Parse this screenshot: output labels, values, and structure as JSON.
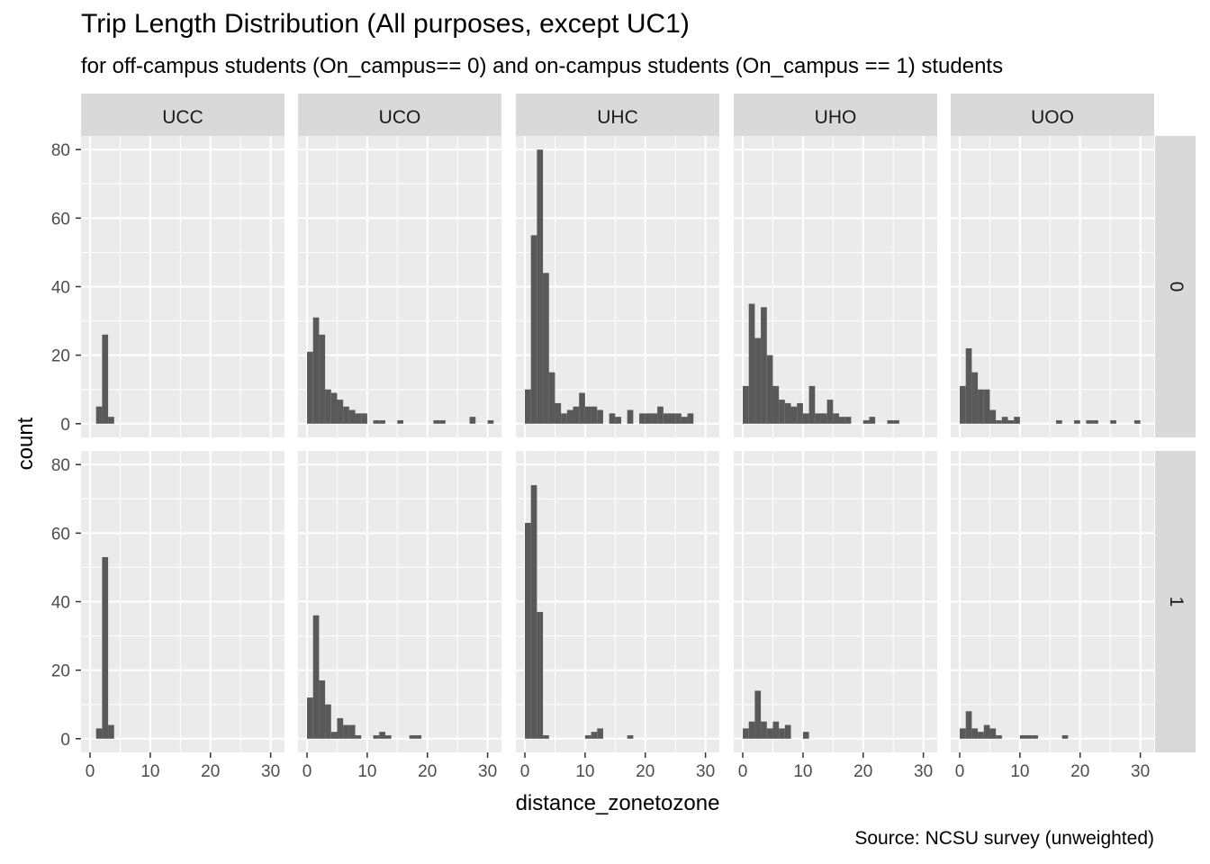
{
  "chart_data": {
    "type": "bar",
    "title": "Trip Length Distribution (All purposes, except UC1)",
    "subtitle": "for off-campus students (On_campus== 0) and on-campus students (On_campus == 1) students",
    "caption": "Source: NCSU survey (unweighted)",
    "xlabel": "distance_zonetozone",
    "ylabel": "count",
    "xlim": [
      -1.5,
      32.3
    ],
    "ylim": [
      -4,
      84
    ],
    "xticks": [
      0,
      10,
      20,
      30
    ],
    "yticks": [
      0,
      20,
      40,
      60,
      80
    ],
    "bin_width": 1,
    "grid": true,
    "bar_color": "#595959",
    "panel_background": "#EBEBEB",
    "strip_background": "#D9D9D9",
    "columns": [
      "UCC",
      "UCO",
      "UHC",
      "UHO",
      "UOO"
    ],
    "rows": [
      "0",
      "1"
    ],
    "panels": [
      {
        "col": "UCC",
        "row": "0",
        "bins": [
          [
            1,
            5
          ],
          [
            2,
            26
          ],
          [
            3,
            2
          ]
        ]
      },
      {
        "col": "UCO",
        "row": "0",
        "bins": [
          [
            0,
            21
          ],
          [
            1,
            31
          ],
          [
            2,
            26
          ],
          [
            3,
            10
          ],
          [
            4,
            9
          ],
          [
            5,
            7
          ],
          [
            6,
            5
          ],
          [
            7,
            4
          ],
          [
            8,
            3
          ],
          [
            9,
            3
          ],
          [
            11,
            1
          ],
          [
            12,
            1
          ],
          [
            15,
            1
          ],
          [
            21,
            1
          ],
          [
            22,
            1
          ],
          [
            27,
            2
          ],
          [
            30,
            1
          ]
        ]
      },
      {
        "col": "UHC",
        "row": "0",
        "bins": [
          [
            0,
            10
          ],
          [
            1,
            55
          ],
          [
            2,
            80
          ],
          [
            3,
            44
          ],
          [
            4,
            15
          ],
          [
            5,
            6
          ],
          [
            6,
            3
          ],
          [
            7,
            4
          ],
          [
            8,
            5
          ],
          [
            9,
            9
          ],
          [
            10,
            5
          ],
          [
            11,
            5
          ],
          [
            12,
            4
          ],
          [
            14,
            3
          ],
          [
            15,
            2
          ],
          [
            17,
            4
          ],
          [
            19,
            3
          ],
          [
            20,
            3
          ],
          [
            21,
            3
          ],
          [
            22,
            5
          ],
          [
            23,
            3
          ],
          [
            24,
            3
          ],
          [
            25,
            3
          ],
          [
            26,
            2
          ],
          [
            27,
            3
          ]
        ]
      },
      {
        "col": "UHO",
        "row": "0",
        "bins": [
          [
            0,
            11
          ],
          [
            1,
            35
          ],
          [
            2,
            25
          ],
          [
            3,
            34
          ],
          [
            4,
            20
          ],
          [
            5,
            11
          ],
          [
            6,
            7
          ],
          [
            7,
            6
          ],
          [
            8,
            5
          ],
          [
            9,
            6
          ],
          [
            10,
            3
          ],
          [
            11,
            11
          ],
          [
            12,
            3
          ],
          [
            13,
            3
          ],
          [
            14,
            7
          ],
          [
            15,
            3
          ],
          [
            16,
            2
          ],
          [
            17,
            2
          ],
          [
            20,
            1
          ],
          [
            21,
            2
          ],
          [
            24,
            1
          ],
          [
            25,
            1
          ]
        ]
      },
      {
        "col": "UOO",
        "row": "0",
        "bins": [
          [
            0,
            11
          ],
          [
            1,
            22
          ],
          [
            2,
            15
          ],
          [
            3,
            10
          ],
          [
            4,
            10
          ],
          [
            5,
            4
          ],
          [
            6,
            1
          ],
          [
            7,
            2
          ],
          [
            8,
            1
          ],
          [
            9,
            2
          ],
          [
            16,
            1
          ],
          [
            19,
            1
          ],
          [
            21,
            1
          ],
          [
            22,
            1
          ],
          [
            25,
            1
          ],
          [
            29,
            1
          ]
        ]
      },
      {
        "col": "UCC",
        "row": "1",
        "bins": [
          [
            1,
            3
          ],
          [
            2,
            53
          ],
          [
            3,
            4
          ]
        ]
      },
      {
        "col": "UCO",
        "row": "1",
        "bins": [
          [
            0,
            12
          ],
          [
            1,
            36
          ],
          [
            2,
            17
          ],
          [
            3,
            10
          ],
          [
            4,
            2
          ],
          [
            5,
            6
          ],
          [
            6,
            4
          ],
          [
            7,
            4
          ],
          [
            8,
            1
          ],
          [
            11,
            1
          ],
          [
            12,
            2
          ],
          [
            13,
            1
          ],
          [
            17,
            1
          ],
          [
            18,
            1
          ]
        ]
      },
      {
        "col": "UHC",
        "row": "1",
        "bins": [
          [
            0,
            63
          ],
          [
            1,
            74
          ],
          [
            2,
            37
          ],
          [
            3,
            1
          ],
          [
            10,
            1
          ],
          [
            11,
            2
          ],
          [
            12,
            3
          ],
          [
            17,
            1
          ]
        ]
      },
      {
        "col": "UHO",
        "row": "1",
        "bins": [
          [
            0,
            3
          ],
          [
            1,
            5
          ],
          [
            2,
            14
          ],
          [
            3,
            5
          ],
          [
            4,
            3
          ],
          [
            5,
            5
          ],
          [
            6,
            3
          ],
          [
            7,
            4
          ],
          [
            10,
            2
          ]
        ]
      },
      {
        "col": "UOO",
        "row": "1",
        "bins": [
          [
            0,
            3
          ],
          [
            1,
            8
          ],
          [
            2,
            3
          ],
          [
            3,
            2
          ],
          [
            4,
            4
          ],
          [
            5,
            3
          ],
          [
            6,
            1
          ],
          [
            10,
            1
          ],
          [
            11,
            1
          ],
          [
            12,
            1
          ],
          [
            17,
            1
          ]
        ]
      }
    ]
  }
}
